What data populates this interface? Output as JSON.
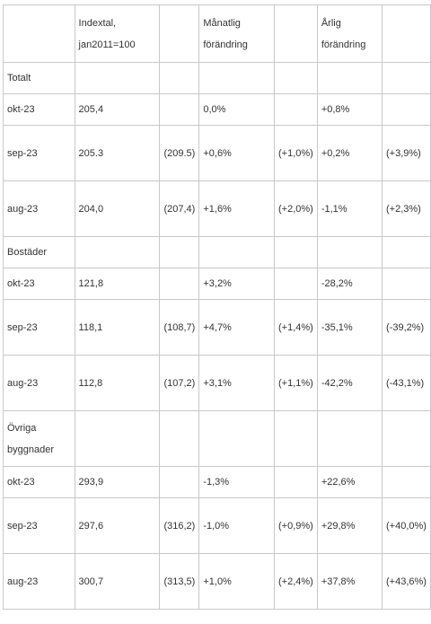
{
  "header": {
    "c1": "",
    "c2": "Indextal, jan2011=100",
    "c3": "",
    "c4": "Månatlig förändring",
    "c5": "",
    "c6": "Årlig förändring",
    "c7": ""
  },
  "rows": [
    {
      "c1": "Totalt",
      "c2": "",
      "c3": "",
      "c4": "",
      "c5": "",
      "c6": "",
      "c7": ""
    },
    {
      "c1": "okt-23",
      "c2": "205,4",
      "c3": "",
      "c4": "0,0%",
      "c5": "",
      "c6": "+0,8%",
      "c7": ""
    },
    {
      "c1": "sep-23",
      "c2": "205.3",
      "c3": "(209.5)",
      "c4": "+0,6%",
      "c5": "(+1,0%)",
      "c6": "+0,2%",
      "c7": "(+3,9%)"
    },
    {
      "c1": "aug-23",
      "c2": "204,0",
      "c3": "(207,4)",
      "c4": "+1,6%",
      "c5": "(+2,0%)",
      "c6": "-1,1%",
      "c7": "(+2,3%)"
    },
    {
      "c1": "Bostäder",
      "c2": "",
      "c3": "",
      "c4": "",
      "c5": "",
      "c6": "",
      "c7": ""
    },
    {
      "c1": "okt-23",
      "c2": "121,8",
      "c3": "",
      "c4": "+3,2%",
      "c5": "",
      "c6": "-28,2%",
      "c7": ""
    },
    {
      "c1": "sep-23",
      "c2": "118,1",
      "c3": "(108,7)",
      "c4": "+4,7%",
      "c5": "(+1,4%)",
      "c6": "-35,1%",
      "c7": "(-39,2%)"
    },
    {
      "c1": "aug-23",
      "c2": "112,8",
      "c3": "(107,2)",
      "c4": "+3,1%",
      "c5": "(+1,1%)",
      "c6": "-42,2%",
      "c7": "(-43,1%)"
    },
    {
      "c1": "Övriga byggnader",
      "c2": "",
      "c3": "",
      "c4": "",
      "c5": "",
      "c6": "",
      "c7": ""
    },
    {
      "c1": "okt-23",
      "c2": "293,9",
      "c3": "",
      "c4": "-1,3%",
      "c5": "",
      "c6": "+22,6%",
      "c7": ""
    },
    {
      "c1": "sep-23",
      "c2": "297,6",
      "c3": "(316,2)",
      "c4": "-1,0%",
      "c5": "(+0,9%)",
      "c6": "+29,8%",
      "c7": "(+40,0%)"
    },
    {
      "c1": "aug-23",
      "c2": "300,7",
      "c3": "(313,5)",
      "c4": "+1,0%",
      "c5": "(+2,4%)",
      "c6": "+37,8%",
      "c7": "(+43,6%)"
    }
  ]
}
